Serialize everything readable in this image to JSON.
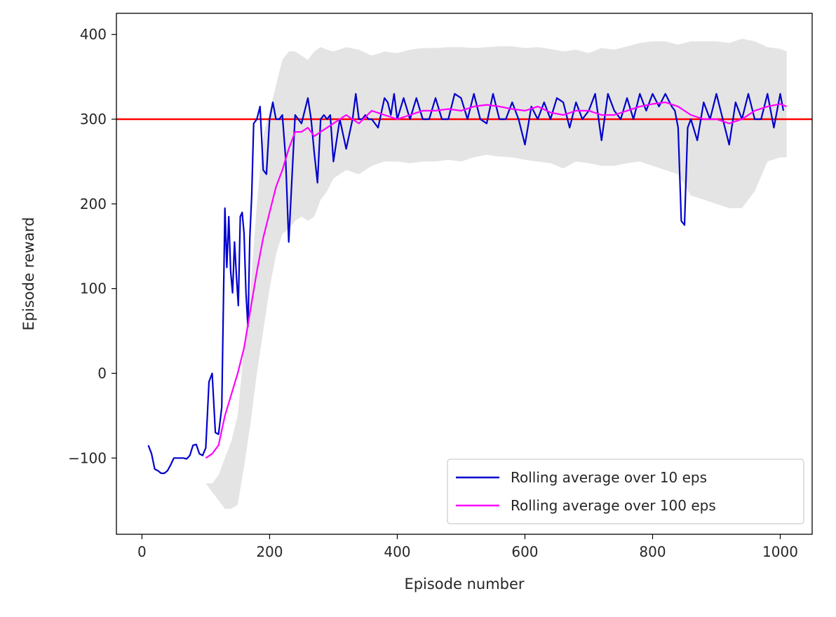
{
  "chart_data": {
    "type": "line",
    "title": "",
    "xlabel": "Episode number",
    "ylabel": "Episode reward",
    "xlim": [
      -40,
      1050
    ],
    "ylim": [
      -190,
      425
    ],
    "xticks": [
      0,
      200,
      400,
      600,
      800,
      1000
    ],
    "yticks": [
      -100,
      0,
      100,
      200,
      300,
      400
    ],
    "xtick_labels": [
      "0",
      "200",
      "400",
      "600",
      "800",
      "1000"
    ],
    "ytick_labels": [
      "−100",
      "0",
      "100",
      "200",
      "300",
      "400"
    ],
    "grid": false,
    "legend_position": "lower-right",
    "reference_line": {
      "y": 300,
      "color": "#ff0000"
    },
    "series": [
      {
        "name": "Rolling average over 10 eps",
        "color": "#0000cc",
        "x": [
          10,
          15,
          20,
          25,
          30,
          35,
          40,
          45,
          50,
          55,
          60,
          65,
          70,
          75,
          80,
          85,
          90,
          95,
          100,
          105,
          110,
          115,
          120,
          125,
          130,
          133,
          136,
          139,
          142,
          145,
          148,
          151,
          154,
          157,
          160,
          163,
          166,
          169,
          172,
          175,
          180,
          185,
          190,
          195,
          200,
          205,
          210,
          215,
          220,
          225,
          230,
          240,
          250,
          260,
          265,
          270,
          275,
          280,
          285,
          290,
          295,
          300,
          310,
          320,
          330,
          335,
          340,
          345,
          350,
          355,
          360,
          370,
          380,
          385,
          390,
          395,
          400,
          410,
          420,
          430,
          440,
          450,
          460,
          470,
          480,
          490,
          500,
          510,
          520,
          530,
          540,
          550,
          560,
          570,
          580,
          590,
          600,
          610,
          620,
          630,
          640,
          650,
          660,
          670,
          680,
          690,
          700,
          710,
          720,
          730,
          740,
          750,
          760,
          770,
          780,
          790,
          800,
          810,
          820,
          830,
          835,
          840,
          845,
          850,
          855,
          860,
          870,
          880,
          890,
          900,
          910,
          920,
          930,
          940,
          950,
          960,
          970,
          980,
          990,
          1000,
          1005
        ],
        "values": [
          -85,
          -95,
          -113,
          -115,
          -118,
          -118,
          -115,
          -108,
          -100,
          -100,
          -100,
          -100,
          -101,
          -97,
          -85,
          -84,
          -95,
          -97,
          -88,
          -10,
          0,
          -70,
          -72,
          -40,
          195,
          125,
          185,
          120,
          95,
          155,
          115,
          80,
          185,
          190,
          165,
          95,
          55,
          160,
          210,
          295,
          300,
          315,
          240,
          235,
          300,
          320,
          300,
          300,
          305,
          255,
          155,
          305,
          295,
          325,
          300,
          260,
          225,
          300,
          305,
          300,
          305,
          250,
          300,
          265,
          300,
          330,
          300,
          300,
          305,
          300,
          300,
          290,
          325,
          320,
          305,
          330,
          300,
          325,
          300,
          325,
          300,
          300,
          325,
          300,
          300,
          330,
          325,
          300,
          330,
          300,
          295,
          330,
          300,
          300,
          320,
          300,
          270,
          315,
          300,
          320,
          300,
          325,
          320,
          290,
          320,
          300,
          310,
          330,
          275,
          330,
          310,
          300,
          325,
          300,
          330,
          310,
          330,
          315,
          330,
          315,
          310,
          290,
          180,
          175,
          290,
          300,
          275,
          320,
          300,
          330,
          300,
          270,
          320,
          300,
          330,
          300,
          300,
          330,
          290,
          330,
          310
        ],
        "band": false
      },
      {
        "name": "Rolling average over 100 eps",
        "color": "#ff00ff",
        "x": [
          100,
          110,
          120,
          130,
          140,
          150,
          160,
          170,
          180,
          190,
          200,
          210,
          220,
          230,
          240,
          250,
          260,
          270,
          280,
          290,
          300,
          320,
          340,
          360,
          380,
          400,
          420,
          440,
          460,
          480,
          500,
          520,
          540,
          560,
          580,
          600,
          620,
          640,
          660,
          680,
          700,
          720,
          740,
          760,
          780,
          800,
          820,
          840,
          860,
          880,
          900,
          920,
          940,
          960,
          980,
          1000,
          1010
        ],
        "values": [
          -100,
          -95,
          -85,
          -50,
          -25,
          0,
          30,
          75,
          120,
          160,
          190,
          220,
          240,
          265,
          285,
          285,
          290,
          280,
          285,
          290,
          295,
          305,
          295,
          310,
          305,
          300,
          305,
          310,
          310,
          312,
          310,
          315,
          317,
          315,
          312,
          310,
          315,
          308,
          305,
          310,
          310,
          305,
          305,
          310,
          315,
          318,
          320,
          315,
          305,
          300,
          300,
          295,
          300,
          310,
          315,
          318,
          315
        ],
        "band_upper": [
          -130,
          -130,
          -120,
          -100,
          -80,
          -50,
          30,
          100,
          200,
          280,
          310,
          340,
          370,
          380,
          380,
          375,
          370,
          380,
          385,
          382,
          380,
          385,
          382,
          375,
          380,
          378,
          382,
          384,
          384,
          385,
          385,
          384,
          385,
          386,
          386,
          384,
          385,
          383,
          380,
          382,
          378,
          384,
          382,
          386,
          390,
          392,
          392,
          388,
          392,
          392,
          392,
          390,
          395,
          392,
          385,
          383,
          380
        ],
        "band_lower": [
          -130,
          -140,
          -150,
          -160,
          -160,
          -155,
          -110,
          -60,
          0,
          50,
          100,
          140,
          165,
          170,
          180,
          185,
          180,
          185,
          205,
          215,
          230,
          240,
          235,
          245,
          250,
          250,
          248,
          250,
          250,
          252,
          250,
          255,
          258,
          256,
          255,
          252,
          250,
          248,
          242,
          250,
          248,
          245,
          245,
          248,
          250,
          245,
          240,
          235,
          210,
          205,
          200,
          195,
          195,
          215,
          250,
          255,
          255
        ]
      }
    ]
  }
}
